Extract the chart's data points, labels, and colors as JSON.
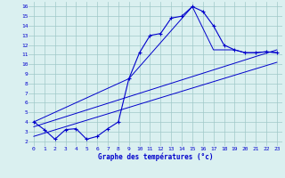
{
  "xlabel": "Graphe des températures (°c)",
  "xlim": [
    -0.5,
    23.5
  ],
  "ylim": [
    1.5,
    16.5
  ],
  "xticks": [
    0,
    1,
    2,
    3,
    4,
    5,
    6,
    7,
    8,
    9,
    10,
    11,
    12,
    13,
    14,
    15,
    16,
    17,
    18,
    19,
    20,
    21,
    22,
    23
  ],
  "yticks": [
    2,
    3,
    4,
    5,
    6,
    7,
    8,
    9,
    10,
    11,
    12,
    13,
    14,
    15,
    16
  ],
  "bg_color": "#daf0f0",
  "line_color": "#0000cc",
  "grid_color": "#a0c8c8",
  "line1_x": [
    0,
    1,
    2,
    3,
    4,
    5,
    6,
    7,
    8,
    9,
    10,
    11,
    12,
    13,
    14,
    15,
    16,
    17,
    18,
    19,
    20,
    21,
    22,
    23
  ],
  "line1_y": [
    4.0,
    3.2,
    2.2,
    3.2,
    3.3,
    2.2,
    2.5,
    3.3,
    4.0,
    8.5,
    11.2,
    13.0,
    13.2,
    14.8,
    15.0,
    16.0,
    15.5,
    14.0,
    12.0,
    11.5,
    11.2,
    11.2,
    11.3,
    11.2
  ],
  "line2_x": [
    0,
    23
  ],
  "line2_y": [
    3.5,
    11.5
  ],
  "line3_x": [
    0,
    23
  ],
  "line3_y": [
    2.5,
    10.2
  ],
  "line4_x": [
    0,
    9,
    15,
    17,
    19,
    20,
    21,
    22,
    23
  ],
  "line4_y": [
    4.0,
    8.5,
    16.0,
    11.5,
    11.5,
    11.2,
    11.2,
    11.3,
    11.2
  ]
}
